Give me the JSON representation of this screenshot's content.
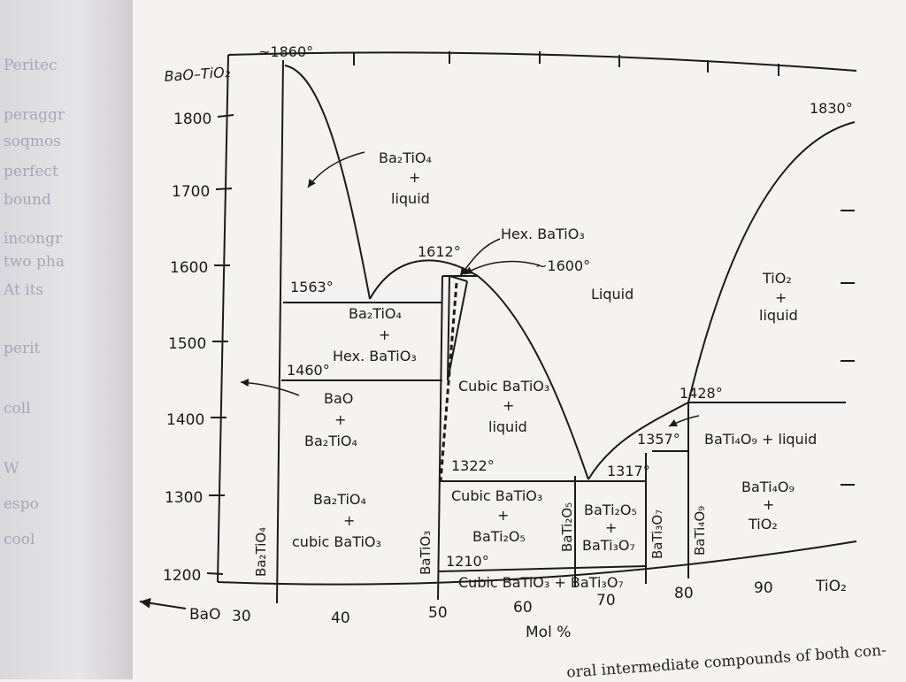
{
  "diagram": {
    "corner_label": "BaO–TiO₂",
    "y_ticks": [
      "1800",
      "1700",
      "1600",
      "1500",
      "1400",
      "1300",
      "1200"
    ],
    "x_ticks": [
      "30",
      "40",
      "50",
      "60",
      "70",
      "80",
      "90"
    ],
    "x_left_end": "BaO",
    "x_right_end": "TiO₂",
    "x_axis_label": "Mol %",
    "temperatures": {
      "t1860": "~1860°",
      "t1830": "1830°",
      "t1612": "1612°",
      "t1600": "~1600°",
      "t1563": "1563°",
      "t1460": "1460°",
      "t1428": "1428°",
      "t1357": "1357°",
      "t1322": "1322°",
      "t1317": "1317°",
      "t1210": "1210°"
    },
    "regions": {
      "ba2tio4_liquid": [
        "Ba₂TiO₄",
        "+",
        "liquid"
      ],
      "hex_batio3_label": "Hex. BaTiO₃",
      "liquid": "Liquid",
      "tio2_liquid": [
        "TiO₂",
        "+",
        "liquid"
      ],
      "ba2tio4_hex": [
        "Ba₂TiO₄",
        "+",
        "Hex. BaTiO₃"
      ],
      "bao_ba2tio4": [
        "BaO",
        "+",
        "Ba₂TiO₄"
      ],
      "cubic_liquid": [
        "Cubic BaTiO₃",
        "+",
        "liquid"
      ],
      "bati4o9_liquid": "BaTi₄O₉ + liquid",
      "ba2tio4_cubic": [
        "Ba₂TiO₄",
        "+",
        "cubic BaTiO₃"
      ],
      "cubic_bati2o5": [
        "Cubic BaTiO₃",
        "+",
        "BaTi₂O₅"
      ],
      "bati2o5_bati3o7": [
        "BaTi₂O₅",
        "+",
        "BaTi₃O₇"
      ],
      "bati4o9_tio2": [
        "BaTi₄O₉",
        "+",
        "TiO₂"
      ],
      "cubic_bati3o7": "Cubic BaTiO₃ + BaTi₃O₇"
    },
    "compounds": {
      "ba2tio4": "Ba₂TiO₄",
      "batio3": "BaTiO₃",
      "bati2o5": "BaTi₂O₅",
      "bati3o7": "BaTi₃O₇",
      "bati4o9": "BaTi₄O₉"
    }
  },
  "page": {
    "bottom_text": "oral intermediate compounds of both con-",
    "left_page_fragments": [
      "Peritec",
      "peraggr",
      "soqmos",
      "perfect",
      "bound",
      "incongr",
      "two pha",
      "At its",
      "perit",
      "coll",
      "W",
      "espo",
      "cool"
    ]
  }
}
